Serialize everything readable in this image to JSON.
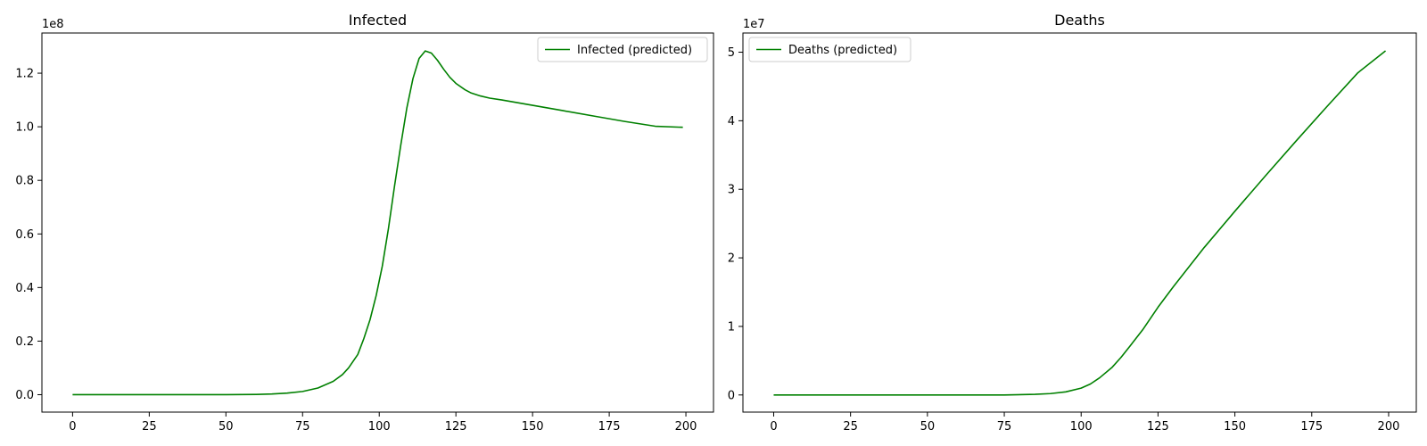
{
  "chart_data": [
    {
      "type": "line",
      "title": "Infected",
      "xlabel": "",
      "ylabel": "",
      "y_offset_label": "1e8",
      "xlim": [
        -10,
        209
      ],
      "ylim": [
        -6500000,
        135000000
      ],
      "xticks": [
        0,
        25,
        50,
        75,
        100,
        125,
        150,
        175,
        200
      ],
      "xtick_labels": [
        "0",
        "25",
        "50",
        "75",
        "100",
        "125",
        "150",
        "175",
        "200"
      ],
      "yticks": [
        0,
        20000000,
        40000000,
        60000000,
        80000000,
        100000000,
        120000000
      ],
      "ytick_labels": [
        "0.0",
        "0.2",
        "0.4",
        "0.6",
        "0.8",
        "1.0",
        "1.2"
      ],
      "legend_position": "upper right",
      "grid": false,
      "series": [
        {
          "name": "Infected (predicted)",
          "color": "#008000",
          "x": [
            0,
            10,
            20,
            30,
            40,
            50,
            60,
            65,
            70,
            75,
            80,
            85,
            88,
            90,
            93,
            95,
            97,
            99,
            101,
            103,
            105,
            107,
            109,
            111,
            113,
            115,
            117,
            119,
            121,
            123,
            125,
            128,
            130,
            133,
            136,
            140,
            145,
            150,
            160,
            170,
            180,
            190,
            199
          ],
          "y": [
            0,
            0,
            0,
            0,
            0,
            0,
            100000,
            250000,
            600000,
            1200000,
            2500000,
            5000000,
            7500000,
            10000000,
            15000000,
            21000000,
            28000000,
            37000000,
            48000000,
            62000000,
            78000000,
            93000000,
            107000000,
            118000000,
            125500000,
            128300000,
            127500000,
            124800000,
            121500000,
            118500000,
            116200000,
            113800000,
            112600000,
            111500000,
            110700000,
            110000000,
            109000000,
            108000000,
            106000000,
            104000000,
            102000000,
            100200000,
            99800000
          ]
        }
      ]
    },
    {
      "type": "line",
      "title": "Deaths",
      "xlabel": "",
      "ylabel": "",
      "y_offset_label": "1e7",
      "xlim": [
        -10,
        209
      ],
      "ylim": [
        -2500000,
        52800000
      ],
      "xticks": [
        0,
        25,
        50,
        75,
        100,
        125,
        150,
        175,
        200
      ],
      "xtick_labels": [
        "0",
        "25",
        "50",
        "75",
        "100",
        "125",
        "150",
        "175",
        "200"
      ],
      "yticks": [
        0,
        10000000,
        20000000,
        30000000,
        40000000,
        50000000
      ],
      "ytick_labels": [
        "0",
        "1",
        "2",
        "3",
        "4",
        "5"
      ],
      "legend_position": "upper left",
      "grid": false,
      "series": [
        {
          "name": "Deaths (predicted)",
          "color": "#008000",
          "x": [
            0,
            25,
            50,
            75,
            85,
            90,
            95,
            100,
            103,
            106,
            110,
            113,
            116,
            120,
            125,
            130,
            140,
            150,
            160,
            170,
            180,
            190,
            199
          ],
          "y": [
            0,
            0,
            0,
            0,
            100000,
            200000,
            450000,
            1000000,
            1600000,
            2500000,
            4000000,
            5500000,
            7200000,
            9500000,
            12800000,
            15800000,
            21500000,
            26800000,
            32000000,
            37100000,
            42100000,
            47000000,
            50200000
          ]
        }
      ]
    }
  ]
}
